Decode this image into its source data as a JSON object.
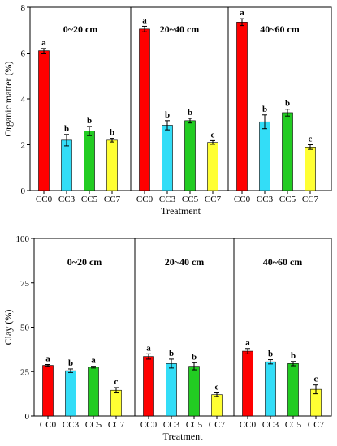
{
  "chart_data": [
    {
      "type": "bar",
      "ylabel": "Organic matter (%)",
      "xlabel": "Treatment",
      "ylim": [
        0,
        8
      ],
      "yticks": [
        "0",
        "2",
        "4",
        "6",
        "8"
      ],
      "groups": [
        "0~20 cm",
        "20~40 cm",
        "40~60 cm"
      ],
      "categories": [
        "CC0",
        "CC3",
        "CC5",
        "CC7"
      ],
      "colors": [
        "#ff0000",
        "#33ddf7",
        "#22cc22",
        "#ffff33"
      ],
      "values": [
        [
          6.1,
          2.2,
          2.6,
          2.2
        ],
        [
          7.05,
          2.85,
          3.05,
          2.1
        ],
        [
          7.35,
          3.0,
          3.4,
          1.9
        ]
      ],
      "errors": [
        [
          0.1,
          0.25,
          0.2,
          0.08
        ],
        [
          0.12,
          0.2,
          0.1,
          0.08
        ],
        [
          0.15,
          0.3,
          0.15,
          0.1
        ]
      ],
      "letters": [
        [
          "a",
          "b",
          "b",
          "b"
        ],
        [
          "a",
          "b",
          "b",
          "c"
        ],
        [
          "a",
          "b",
          "b",
          "c"
        ]
      ]
    },
    {
      "type": "bar",
      "ylabel": "Clay (%)",
      "xlabel": "Treatment",
      "ylim": [
        0,
        100
      ],
      "yticks": [
        "0",
        "25",
        "50",
        "75",
        "100"
      ],
      "groups": [
        "0~20 cm",
        "20~40 cm",
        "40~60 cm"
      ],
      "categories": [
        "CC0",
        "CC3",
        "CC5",
        "CC7"
      ],
      "colors": [
        "#ff0000",
        "#33ddf7",
        "#22cc22",
        "#ffff33"
      ],
      "values": [
        [
          28.5,
          25.5,
          27.5,
          14.5
        ],
        [
          33.5,
          29.5,
          28.0,
          12.0
        ],
        [
          36.5,
          30.5,
          29.5,
          15.0
        ]
      ],
      "errors": [
        [
          0.5,
          1.0,
          0.5,
          1.5
        ],
        [
          1.5,
          2.5,
          2.0,
          1.0
        ],
        [
          1.5,
          1.2,
          1.2,
          2.5
        ]
      ],
      "letters": [
        [
          "a",
          "b",
          "a",
          "c"
        ],
        [
          "a",
          "b",
          "b",
          "c"
        ],
        [
          "a",
          "b",
          "b",
          "c"
        ]
      ]
    }
  ]
}
